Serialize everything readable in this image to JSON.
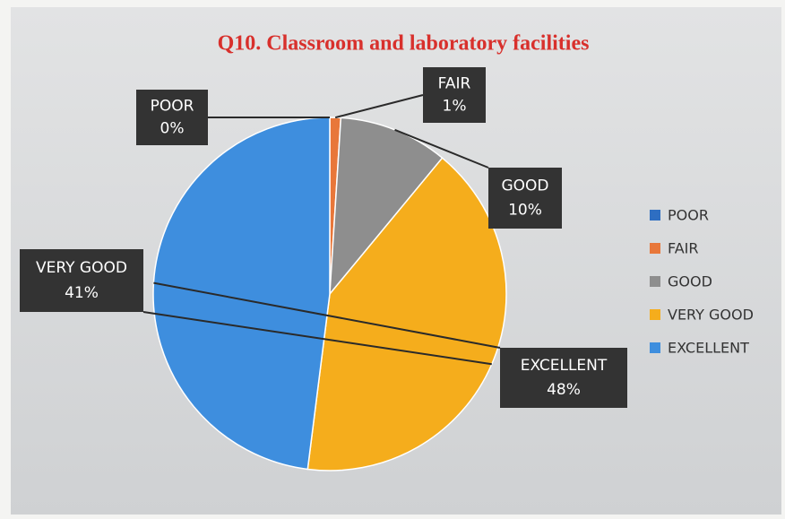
{
  "chart_data": {
    "type": "pie",
    "title": "Q10. Classroom and laboratory facilities",
    "categories": [
      "POOR",
      "FAIR",
      "GOOD",
      "VERY GOOD",
      "EXCELLENT"
    ],
    "values": [
      0,
      1,
      10,
      41,
      48
    ],
    "value_labels": [
      "0%",
      "1%",
      "10%",
      "41%",
      "48%"
    ],
    "colors": [
      "#2e6ec2",
      "#e8773a",
      "#8e8e8e",
      "#f5ad1c",
      "#3e8ede"
    ],
    "legend": "right"
  }
}
